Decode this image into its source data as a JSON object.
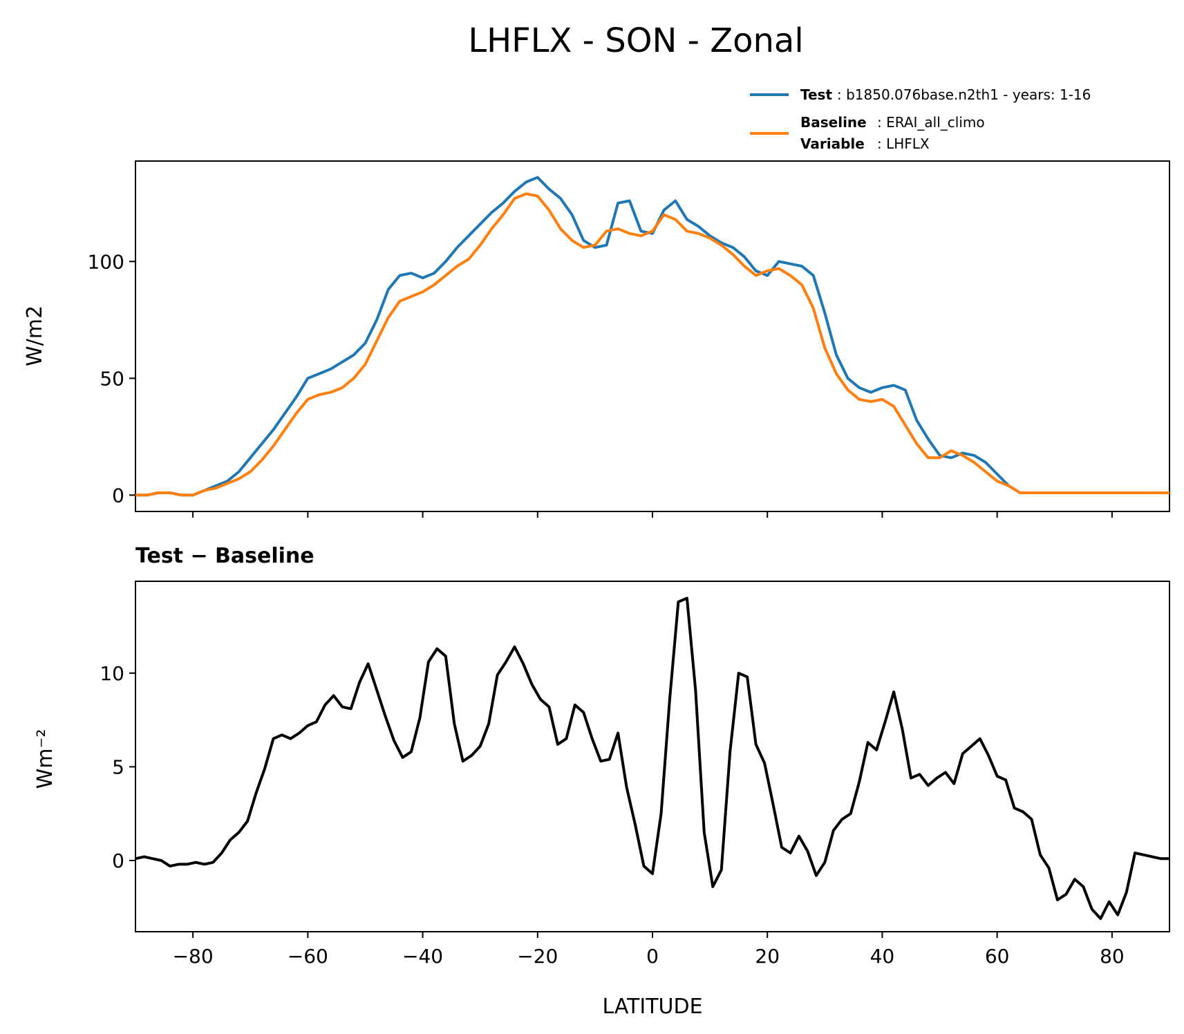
{
  "figure": {
    "title": "LHFLX - SON - Zonal"
  },
  "legend": {
    "items": [
      {
        "key": "Test",
        "text": ": b1850.076base.n2th1 - years: 1-16",
        "color": "#1f77b4"
      },
      {
        "key": "Baseline",
        "text": ": ERAI_all_climo",
        "key2": "Variable",
        "text2": ": LHFLX",
        "color": "#ff7f0e"
      }
    ]
  },
  "chart_data": [
    {
      "type": "line",
      "ylabel": "W/m2",
      "xlim": [
        -90,
        90
      ],
      "ylim": [
        -7,
        143
      ],
      "yticks": [
        0,
        50,
        100
      ],
      "xticks": [
        -80,
        -60,
        -40,
        -20,
        0,
        20,
        40,
        60,
        80
      ],
      "series": [
        {
          "name": "Test",
          "color": "#1f77b4",
          "x": [
            -90,
            -88,
            -86,
            -84,
            -82,
            -80,
            -78,
            -76,
            -74,
            -72,
            -70,
            -68,
            -66,
            -64,
            -62,
            -60,
            -58,
            -56,
            -54,
            -52,
            -50,
            -48,
            -46,
            -44,
            -42,
            -40,
            -38,
            -36,
            -34,
            -32,
            -30,
            -28,
            -26,
            -24,
            -22,
            -20,
            -18,
            -16,
            -14,
            -12,
            -10,
            -8,
            -6,
            -4,
            -2,
            0,
            2,
            4,
            6,
            8,
            10,
            12,
            14,
            16,
            18,
            20,
            22,
            24,
            26,
            28,
            30,
            32,
            34,
            36,
            38,
            40,
            42,
            44,
            46,
            48,
            50,
            52,
            54,
            56,
            58,
            60,
            62,
            64,
            66,
            68,
            70,
            72,
            74,
            76,
            78,
            80,
            82,
            84,
            86,
            88,
            90
          ],
          "y": [
            0,
            0,
            1,
            1,
            0,
            0,
            2,
            4,
            6,
            10,
            16,
            22,
            28,
            35,
            42,
            50,
            52,
            54,
            57,
            60,
            65,
            75,
            88,
            94,
            95,
            93,
            95,
            100,
            106,
            111,
            116,
            121,
            125,
            130,
            134,
            136,
            131,
            127,
            120,
            109,
            106,
            107,
            125,
            126,
            113,
            112,
            122,
            126,
            118,
            115,
            111,
            108,
            106,
            102,
            96,
            94,
            100,
            99,
            98,
            94,
            78,
            60,
            50,
            46,
            44,
            46,
            47,
            45,
            32,
            24,
            17,
            16,
            18,
            17,
            14,
            9,
            4,
            1,
            1,
            1,
            1,
            1,
            1,
            1,
            1,
            1,
            1,
            1,
            1,
            1,
            1
          ]
        },
        {
          "name": "Baseline",
          "color": "#ff7f0e",
          "x": [
            -90,
            -88,
            -86,
            -84,
            -82,
            -80,
            -78,
            -76,
            -74,
            -72,
            -70,
            -68,
            -66,
            -64,
            -62,
            -60,
            -58,
            -56,
            -54,
            -52,
            -50,
            -48,
            -46,
            -44,
            -42,
            -40,
            -38,
            -36,
            -34,
            -32,
            -30,
            -28,
            -26,
            -24,
            -22,
            -20,
            -18,
            -16,
            -14,
            -12,
            -10,
            -8,
            -6,
            -4,
            -2,
            0,
            2,
            4,
            6,
            8,
            10,
            12,
            14,
            16,
            18,
            20,
            22,
            24,
            26,
            28,
            30,
            32,
            34,
            36,
            38,
            40,
            42,
            44,
            46,
            48,
            50,
            52,
            54,
            56,
            58,
            60,
            62,
            64,
            66,
            68,
            70,
            72,
            74,
            76,
            78,
            80,
            82,
            84,
            86,
            88,
            90
          ],
          "y": [
            0,
            0,
            1,
            1,
            0,
            0,
            2,
            3,
            5,
            7,
            10,
            15,
            21,
            28,
            35,
            41,
            43,
            44,
            46,
            50,
            56,
            66,
            76,
            83,
            85,
            87,
            90,
            94,
            98,
            101,
            107,
            114,
            120,
            127,
            129,
            128,
            122,
            114,
            109,
            106,
            107,
            113,
            114,
            112,
            111,
            113,
            120,
            118,
            113,
            112,
            110,
            107,
            103,
            98,
            94,
            96,
            97,
            94,
            90,
            80,
            63,
            52,
            45,
            41,
            40,
            41,
            38,
            30,
            22,
            16,
            16,
            19,
            17,
            14,
            10,
            6,
            4,
            1,
            1,
            1,
            1,
            1,
            1,
            1,
            1,
            1,
            1,
            1,
            1,
            1,
            1
          ]
        }
      ]
    },
    {
      "type": "line",
      "title": "Test − Baseline",
      "xlabel": "LATITUDE",
      "ylabel": "Wm⁻²",
      "xlim": [
        -90,
        90
      ],
      "ylim": [
        -3.8,
        14.9
      ],
      "yticks": [
        0,
        5,
        10
      ],
      "xticks": [
        -80,
        -60,
        -40,
        -20,
        0,
        20,
        40,
        60,
        80
      ],
      "series": [
        {
          "name": "Test - Baseline",
          "color": "#000000",
          "x": [
            -90,
            -88.5,
            -87,
            -85.5,
            -84,
            -82.5,
            -81,
            -79.5,
            -78,
            -76.5,
            -75,
            -73.5,
            -72,
            -70.5,
            -69,
            -67.5,
            -66,
            -64.5,
            -63,
            -61.5,
            -60,
            -58.5,
            -57,
            -55.5,
            -54,
            -52.5,
            -51,
            -49.5,
            -48,
            -46.5,
            -45,
            -43.5,
            -42,
            -40.5,
            -39,
            -37.5,
            -36,
            -34.5,
            -33,
            -31.5,
            -30,
            -28.5,
            -27,
            -25.5,
            -24,
            -22.5,
            -21,
            -19.5,
            -18,
            -16.5,
            -15,
            -13.5,
            -12,
            -10.5,
            -9,
            -7.5,
            -6,
            -4.5,
            -3,
            -1.5,
            0,
            1.5,
            3,
            4.5,
            6,
            7.5,
            9,
            10.5,
            12,
            13.5,
            15,
            16.5,
            18,
            19.5,
            21,
            22.5,
            24,
            25.5,
            27,
            28.5,
            30,
            31.5,
            33,
            34.5,
            36,
            37.5,
            39,
            40.5,
            42,
            43.5,
            45,
            46.5,
            48,
            49.5,
            51,
            52.5,
            54,
            55.5,
            57,
            58.5,
            60,
            61.5,
            63,
            64.5,
            66,
            67.5,
            69,
            70.5,
            72,
            73.5,
            75,
            76.5,
            78,
            79.5,
            81,
            82.5,
            84,
            85.5,
            87,
            88.5,
            90
          ],
          "y": [
            0.1,
            0.2,
            0.1,
            0,
            -0.3,
            -0.2,
            -0.2,
            -0.1,
            -0.2,
            -0.1,
            0.4,
            1.1,
            1.5,
            2.1,
            3.6,
            4.9,
            6.5,
            6.7,
            6.5,
            6.8,
            7.2,
            7.4,
            8.3,
            8.8,
            8.2,
            8.1,
            9.5,
            10.5,
            9.1,
            7.7,
            6.4,
            5.5,
            5.8,
            7.6,
            10.6,
            11.3,
            10.9,
            7.3,
            5.3,
            5.6,
            6.1,
            7.3,
            9.9,
            10.6,
            11.4,
            10.5,
            9.4,
            8.6,
            8.2,
            6.2,
            6.5,
            8.3,
            7.9,
            6.5,
            5.3,
            5.4,
            6.8,
            3.9,
            1.9,
            -0.3,
            -0.7,
            2.5,
            8.6,
            13.8,
            14.0,
            9.1,
            1.5,
            -1.4,
            -0.5,
            5.8,
            10.0,
            9.8,
            6.2,
            5.2,
            3.0,
            0.7,
            0.4,
            1.3,
            0.5,
            -0.8,
            -0.1,
            1.6,
            2.2,
            2.5,
            4.2,
            6.3,
            5.9,
            7.4,
            9.0,
            7.0,
            4.4,
            4.6,
            4.0,
            4.4,
            4.7,
            4.1,
            5.7,
            6.1,
            6.5,
            5.6,
            4.5,
            4.3,
            2.8,
            2.6,
            2.2,
            0.3,
            -0.4,
            -2.1,
            -1.8,
            -1.0,
            -1.4,
            -2.6,
            -3.1,
            -2.2,
            -2.9,
            -1.7,
            0.4,
            0.3,
            0.2,
            0.1,
            0.1
          ]
        }
      ]
    }
  ]
}
